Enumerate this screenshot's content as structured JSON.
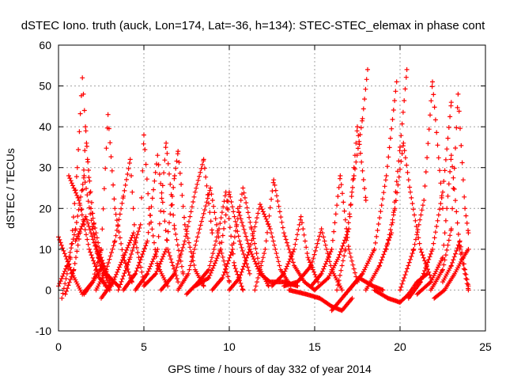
{
  "chart_data": {
    "type": "scatter",
    "title": "dSTEC Iono. truth (auck, Lon=174, Lat=-36, h=134): STEC-STEC_elemax in phase cont",
    "xlabel": "GPS time / hours of day 332 of year 2014",
    "ylabel": "dSTEC  / TECUs",
    "xlim": [
      0,
      25
    ],
    "ylim": [
      -10,
      60
    ],
    "xticks": [
      0,
      5,
      10,
      15,
      20,
      25
    ],
    "yticks": [
      -10,
      0,
      10,
      20,
      30,
      40,
      50,
      60
    ],
    "grid": true,
    "legend": "none",
    "marker": "+",
    "color": "#ff0000",
    "series": [
      {
        "x": [
          0.0,
          0.8,
          1.4,
          2.0,
          2.6
        ],
        "y": [
          13,
          4,
          -1,
          2,
          6
        ]
      },
      {
        "x": [
          0.0,
          0.5,
          1.0,
          1.5,
          2.0,
          2.5,
          3.0
        ],
        "y": [
          1,
          6,
          15,
          28,
          15,
          6,
          1
        ]
      },
      {
        "x": [
          0.2,
          0.7,
          1.1,
          1.4,
          1.7,
          2.2,
          2.8
        ],
        "y": [
          -2,
          8,
          30,
          52,
          32,
          10,
          0
        ]
      },
      {
        "x": [
          0.4,
          0.9,
          1.3,
          1.6,
          1.9,
          2.5,
          3.1
        ],
        "y": [
          -1,
          5,
          15,
          39,
          20,
          8,
          1
        ]
      },
      {
        "x": [
          0.6,
          1.2,
          1.8,
          2.4,
          3.0
        ],
        "y": [
          28,
          22,
          10,
          3,
          0
        ]
      },
      {
        "x": [
          1.0,
          1.6,
          2.2,
          2.8,
          3.5
        ],
        "y": [
          12,
          18,
          10,
          4,
          1
        ]
      },
      {
        "x": [
          1.5,
          2.0,
          2.5,
          2.9,
          3.3,
          3.8,
          4.3
        ],
        "y": [
          -1,
          2,
          10,
          43,
          20,
          8,
          2
        ]
      },
      {
        "x": [
          2.2,
          2.8,
          3.3,
          3.8,
          4.2,
          4.5
        ],
        "y": [
          0,
          5,
          12,
          23,
          32,
          12
        ]
      },
      {
        "x": [
          2.5,
          3.2,
          3.8,
          4.4,
          5.0
        ],
        "y": [
          -2,
          2,
          8,
          14,
          2
        ]
      },
      {
        "x": [
          3.5,
          4.2,
          4.8,
          5.0,
          5.3,
          5.8,
          6.4
        ],
        "y": [
          0,
          8,
          16,
          38,
          20,
          6,
          1
        ]
      },
      {
        "x": [
          3.8,
          4.5,
          5.2,
          5.8,
          6.4,
          7.0
        ],
        "y": [
          0,
          4,
          12,
          33,
          10,
          2
        ]
      },
      {
        "x": [
          4.5,
          5.2,
          5.8,
          6.3,
          6.8,
          7.3
        ],
        "y": [
          0,
          4,
          10,
          36,
          15,
          4
        ]
      },
      {
        "x": [
          5.0,
          5.7,
          6.3,
          6.8,
          7.0,
          7.4,
          8.0,
          8.5
        ],
        "y": [
          1,
          4,
          10,
          28,
          34,
          16,
          5,
          1
        ]
      },
      {
        "x": [
          6.0,
          6.8,
          7.4,
          8.0,
          8.5,
          9.0
        ],
        "y": [
          0,
          4,
          12,
          24,
          32,
          14
        ]
      },
      {
        "x": [
          7.0,
          7.6,
          8.2,
          8.9,
          9.5,
          10.0
        ],
        "y": [
          0,
          4,
          14,
          25,
          10,
          2
        ]
      },
      {
        "x": [
          7.5,
          8.2,
          8.8,
          9.4,
          9.8,
          10.3,
          10.8
        ],
        "y": [
          -1,
          2,
          5,
          15,
          24,
          6,
          0
        ]
      },
      {
        "x": [
          8.0,
          8.8,
          9.5,
          10.0,
          10.6,
          11.2
        ],
        "y": [
          1,
          3,
          10,
          24,
          12,
          4
        ]
      },
      {
        "x": [
          9.0,
          9.6,
          10.2,
          10.8,
          11.3,
          11.8,
          12.3
        ],
        "y": [
          0,
          3,
          10,
          25,
          15,
          5,
          1
        ]
      },
      {
        "x": [
          10.0,
          10.6,
          11.2,
          11.8,
          12.4,
          13.0,
          13.6
        ],
        "y": [
          0,
          3,
          10,
          21,
          15,
          5,
          1
        ]
      },
      {
        "x": [
          10.5,
          11.2,
          11.8,
          12.4,
          13.2,
          14.0
        ],
        "y": [
          20,
          10,
          4,
          2,
          2,
          1
        ]
      },
      {
        "x": [
          11.5,
          12.1,
          12.6,
          13.2,
          13.8,
          14.4,
          15.0
        ],
        "y": [
          0,
          10,
          27,
          14,
          6,
          2,
          0
        ]
      },
      {
        "x": [
          12.5,
          13.2,
          13.8,
          14.2,
          14.6,
          15.2
        ],
        "y": [
          1,
          4,
          10,
          18,
          8,
          2
        ]
      },
      {
        "x": [
          13.2,
          14.0,
          14.8,
          15.4,
          16.0,
          16.6
        ],
        "y": [
          1,
          2,
          6,
          15,
          5,
          0
        ]
      },
      {
        "x": [
          13.5,
          14.5,
          15.3,
          16.0,
          16.6,
          17.2
        ],
        "y": [
          0,
          -1,
          -2,
          -4,
          -5,
          -2
        ]
      },
      {
        "x": [
          14.8,
          15.4,
          16.0,
          16.5,
          17.0,
          17.5
        ],
        "y": [
          1,
          4,
          10,
          28,
          10,
          2
        ]
      },
      {
        "x": [
          15.0,
          15.8,
          16.4,
          17.0,
          17.5,
          18.0
        ],
        "y": [
          0,
          3,
          8,
          15,
          40,
          22
        ]
      },
      {
        "x": [
          16.3,
          16.8,
          17.3,
          17.8,
          18.1
        ],
        "y": [
          0,
          10,
          28,
          42,
          54
        ]
      },
      {
        "x": [
          16.0,
          16.8,
          17.6,
          18.4,
          19.0
        ],
        "y": [
          -5,
          -1,
          3,
          1,
          0
        ]
      },
      {
        "x": [
          17.0,
          17.8,
          18.5,
          19.2,
          19.8
        ],
        "y": [
          0,
          4,
          10,
          28,
          51
        ]
      },
      {
        "x": [
          18.0,
          18.8,
          19.5,
          20.0,
          20.4
        ],
        "y": [
          0,
          6,
          14,
          35,
          54
        ]
      },
      {
        "x": [
          18.5,
          19.3,
          20.0,
          20.5,
          21.0,
          21.6
        ],
        "y": [
          0,
          -2,
          -3,
          -1,
          2,
          4
        ]
      },
      {
        "x": [
          19.2,
          19.7,
          20.2,
          20.6,
          21.2,
          21.8
        ],
        "y": [
          10,
          20,
          36,
          24,
          10,
          3
        ]
      },
      {
        "x": [
          20.0,
          20.8,
          21.4,
          21.9,
          22.5
        ],
        "y": [
          0,
          10,
          22,
          51,
          20
        ]
      },
      {
        "x": [
          20.5,
          21.2,
          21.9,
          22.5,
          23.0
        ],
        "y": [
          -2,
          2,
          10,
          24,
          46
        ]
      },
      {
        "x": [
          21.0,
          21.8,
          22.5,
          23.0,
          23.5,
          24.0
        ],
        "y": [
          -1,
          2,
          8,
          33,
          10,
          0
        ]
      },
      {
        "x": [
          21.8,
          22.5,
          23.0,
          23.4,
          23.8,
          24.0
        ],
        "y": [
          0,
          5,
          15,
          48,
          20,
          14
        ]
      },
      {
        "x": [
          22.0,
          22.6,
          23.2,
          23.7,
          24.0
        ],
        "y": [
          -2,
          0,
          4,
          8,
          10
        ]
      },
      {
        "x": [
          22.5,
          23.0,
          23.5,
          23.8,
          24.0
        ],
        "y": [
          2,
          6,
          12,
          5,
          1
        ]
      }
    ]
  }
}
